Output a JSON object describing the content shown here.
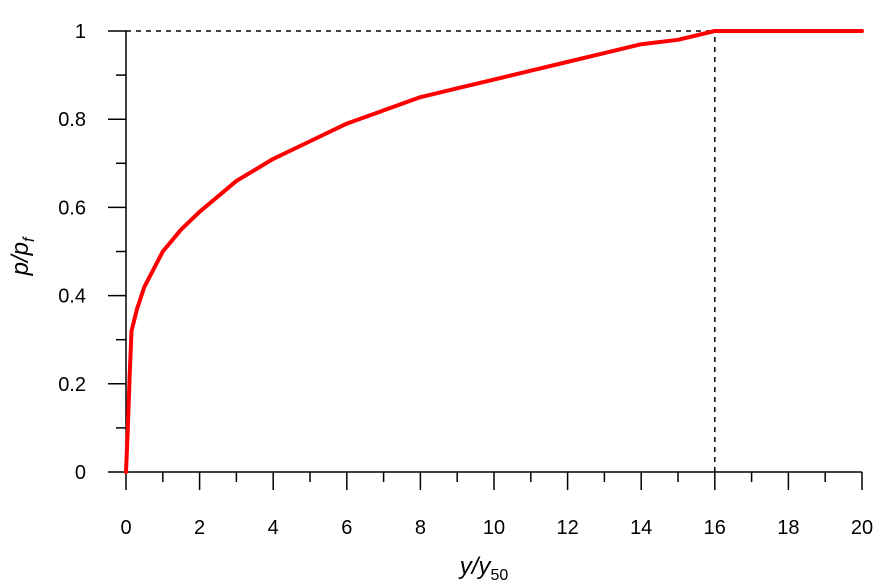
{
  "chart_data": {
    "type": "line",
    "title": "",
    "xlabel": {
      "main": "y/y",
      "sub": "50"
    },
    "ylabel": {
      "main": "p/p",
      "sub": "f"
    },
    "xlim": [
      0,
      20
    ],
    "ylim": [
      0,
      1
    ],
    "x_ticks": [
      0,
      2,
      4,
      6,
      8,
      10,
      12,
      14,
      16,
      18,
      20
    ],
    "x_tick_labels": [
      "0",
      "2",
      "4",
      "6",
      "8",
      "10",
      "12",
      "14",
      "16",
      "18",
      "20"
    ],
    "x_minor_step": 1,
    "y_ticks": [
      0,
      0.2,
      0.4,
      0.6,
      0.8,
      1
    ],
    "y_tick_labels": [
      "0",
      "0.2",
      "0.4",
      "0.6",
      "0.8",
      "1"
    ],
    "y_minor_step": 0.1,
    "grid": false,
    "series": [
      {
        "color": "#ff0000",
        "points": [
          [
            0,
            0
          ],
          [
            0.05,
            0.1
          ],
          [
            0.1,
            0.22
          ],
          [
            0.15,
            0.32
          ],
          [
            0.3,
            0.37
          ],
          [
            0.5,
            0.42
          ],
          [
            1,
            0.5
          ],
          [
            1.5,
            0.55
          ],
          [
            2,
            0.59
          ],
          [
            3,
            0.66
          ],
          [
            4,
            0.71
          ],
          [
            5,
            0.75
          ],
          [
            6,
            0.79
          ],
          [
            7,
            0.82
          ],
          [
            8,
            0.85
          ],
          [
            9,
            0.87
          ],
          [
            10,
            0.89
          ],
          [
            11,
            0.91
          ],
          [
            12,
            0.93
          ],
          [
            13,
            0.95
          ],
          [
            14,
            0.97
          ],
          [
            15,
            0.98
          ],
          [
            16,
            1.0
          ],
          [
            18,
            1.0
          ],
          [
            20,
            1.0
          ]
        ]
      }
    ],
    "reference_lines": [
      {
        "style": "dashed",
        "orientation": "horizontal",
        "y": 1,
        "x_from": 0,
        "x_to": 16
      },
      {
        "style": "dashed",
        "orientation": "vertical",
        "x": 16,
        "y_from": 0,
        "y_to": 1
      }
    ]
  }
}
